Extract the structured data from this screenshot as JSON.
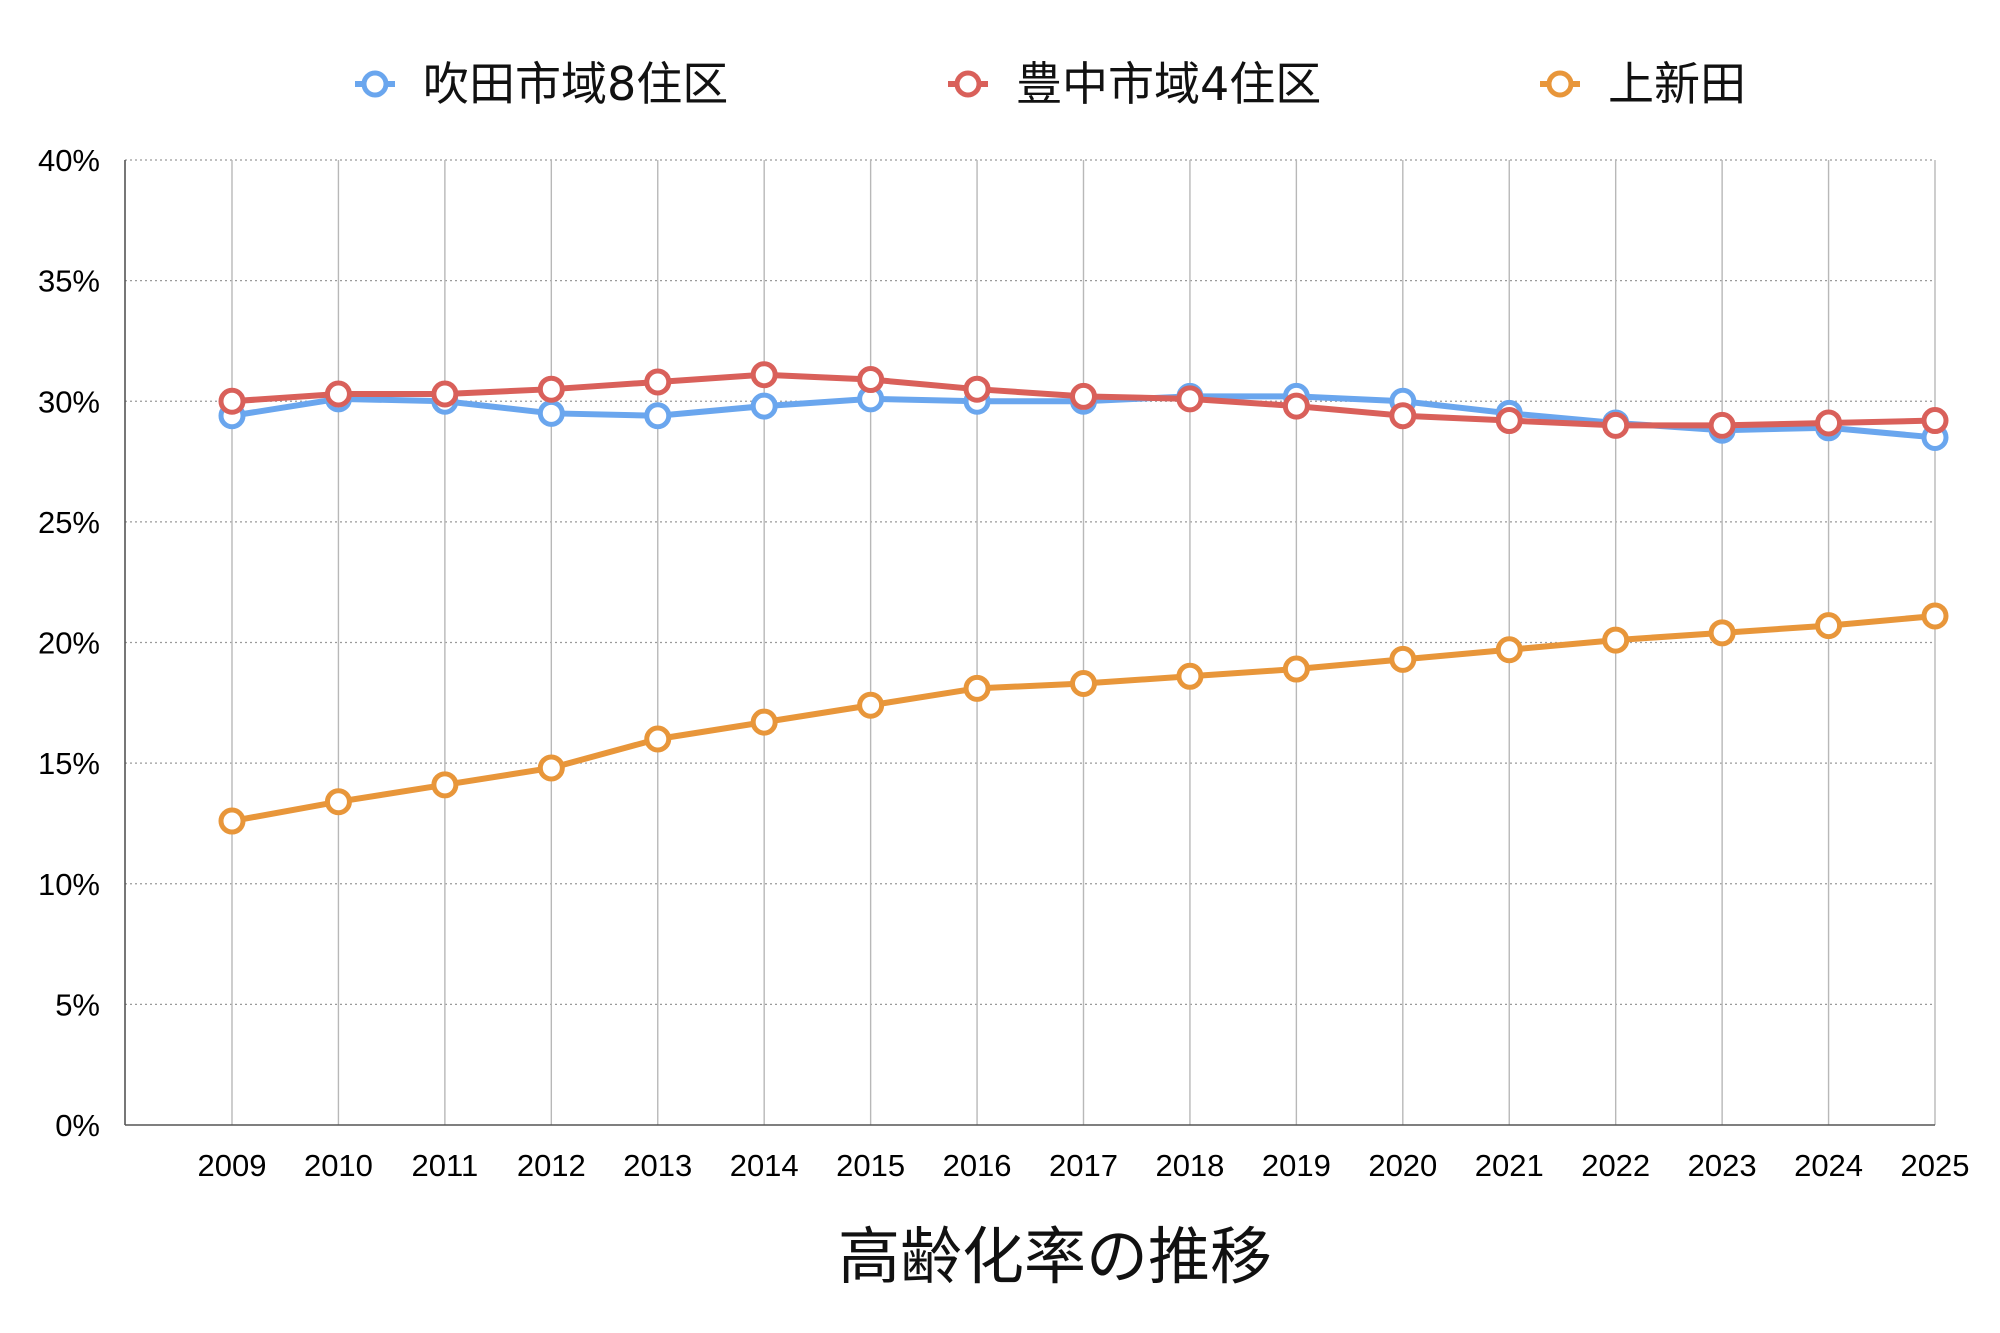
{
  "chart_data": {
    "type": "line",
    "title": "高齢化率の推移",
    "x": [
      "2009",
      "2010",
      "2011",
      "2012",
      "2013",
      "2014",
      "2015",
      "2016",
      "2017",
      "2018",
      "2019",
      "2020",
      "2021",
      "2022",
      "2023",
      "2024",
      "2025"
    ],
    "y_ticks": [
      "0%",
      "5%",
      "10%",
      "15%",
      "20%",
      "25%",
      "30%",
      "35%",
      "40%"
    ],
    "ylim": [
      0,
      40
    ],
    "grid": true,
    "legend_position": "top",
    "series": [
      {
        "name": "吹田市域8住区",
        "color": "#6aa6ee",
        "values": [
          29.4,
          30.1,
          30.0,
          29.5,
          29.4,
          29.8,
          30.1,
          30.0,
          30.0,
          30.2,
          30.2,
          30.0,
          29.5,
          29.1,
          28.8,
          28.9,
          28.5
        ]
      },
      {
        "name": "豊中市域4住区",
        "color": "#d9605a",
        "values": [
          30.0,
          30.3,
          30.3,
          30.5,
          30.8,
          31.1,
          30.9,
          30.5,
          30.2,
          30.1,
          29.8,
          29.4,
          29.2,
          29.0,
          29.0,
          29.1,
          29.2
        ]
      },
      {
        "name": "上新田",
        "color": "#e8963a",
        "values": [
          12.6,
          13.4,
          14.1,
          14.8,
          16.0,
          16.7,
          17.4,
          18.1,
          18.3,
          18.6,
          18.9,
          19.3,
          19.7,
          20.1,
          20.4,
          20.7,
          21.1
        ]
      }
    ]
  }
}
